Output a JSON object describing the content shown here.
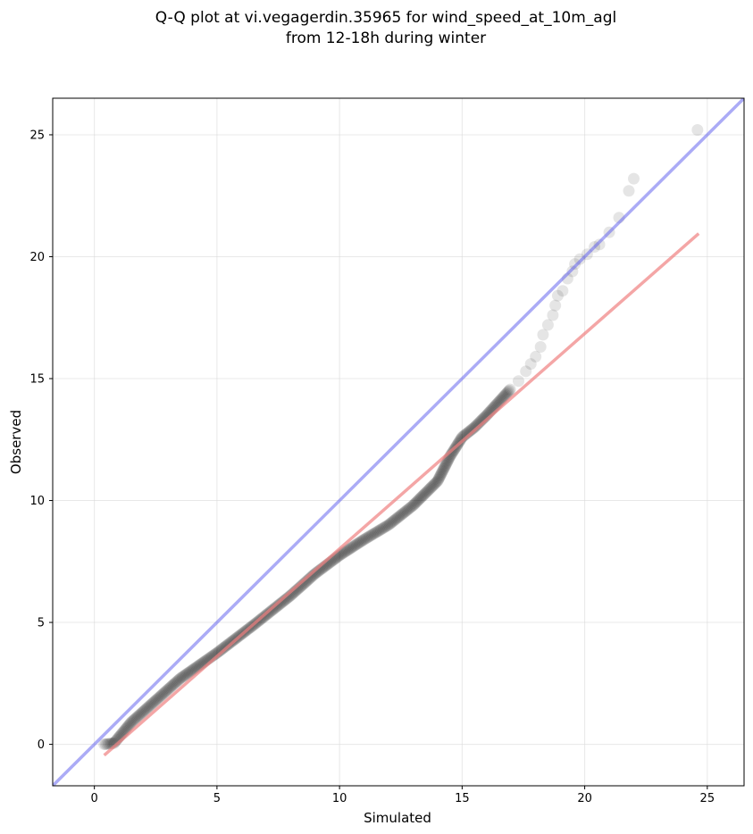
{
  "chart_data": {
    "type": "scatter",
    "title_line1": "Q-Q plot at vi.vegagerdin.35965 for wind_speed_at_10m_agl",
    "title_line2": "from 12-18h during winter",
    "xlabel": "Simulated",
    "ylabel": "Observed",
    "xlim": [
      -1.7,
      26.5
    ],
    "ylim": [
      -1.7,
      26.5
    ],
    "xticks": [
      0,
      5,
      10,
      15,
      20,
      25
    ],
    "yticks": [
      0,
      5,
      10,
      15,
      20,
      25
    ],
    "grid": true,
    "point_color": "#000000",
    "identity_line": {
      "color": "#6666ee",
      "from": [
        -1.7,
        -1.7
      ],
      "to": [
        26.5,
        26.5
      ]
    },
    "fit_line": {
      "color": "#f08080",
      "from": [
        0.4,
        -0.45
      ],
      "to": [
        24.65,
        20.95
      ]
    },
    "dense_points": [
      [
        0.4,
        0.0
      ],
      [
        0.8,
        0.05
      ],
      [
        1.5,
        0.9
      ],
      [
        2.5,
        1.8
      ],
      [
        3.5,
        2.7
      ],
      [
        5.0,
        3.75
      ],
      [
        6.5,
        4.9
      ],
      [
        8.0,
        6.1
      ],
      [
        9.0,
        7.0
      ],
      [
        10.0,
        7.75
      ],
      [
        11.0,
        8.4
      ],
      [
        12.0,
        9.0
      ],
      [
        13.0,
        9.8
      ],
      [
        14.0,
        10.8
      ],
      [
        14.5,
        11.8
      ],
      [
        15.0,
        12.6
      ],
      [
        15.5,
        13.0
      ],
      [
        16.0,
        13.5
      ],
      [
        17.0,
        14.6
      ]
    ],
    "tail_points": [
      [
        17.3,
        14.9
      ],
      [
        17.6,
        15.3
      ],
      [
        17.8,
        15.6
      ],
      [
        18.0,
        15.9
      ],
      [
        18.2,
        16.3
      ],
      [
        18.3,
        16.8
      ],
      [
        18.5,
        17.2
      ],
      [
        18.7,
        17.6
      ],
      [
        18.8,
        18.0
      ],
      [
        18.9,
        18.4
      ],
      [
        19.1,
        18.6
      ],
      [
        19.3,
        19.1
      ],
      [
        19.5,
        19.4
      ],
      [
        19.6,
        19.7
      ],
      [
        19.8,
        19.9
      ],
      [
        20.1,
        20.1
      ],
      [
        20.4,
        20.4
      ],
      [
        20.6,
        20.5
      ],
      [
        21.0,
        21.0
      ],
      [
        21.4,
        21.6
      ],
      [
        21.8,
        22.7
      ],
      [
        22.0,
        23.2
      ],
      [
        24.6,
        25.2
      ]
    ]
  }
}
